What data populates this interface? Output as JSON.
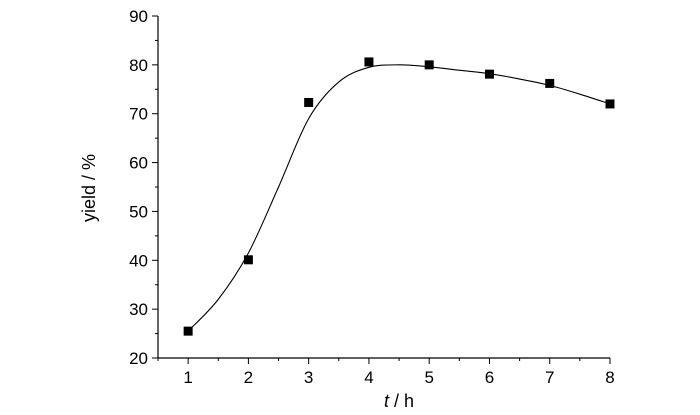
{
  "chart_data": {
    "type": "scatter",
    "title": "",
    "xlabel": {
      "var": "t",
      "unit": " / h"
    },
    "ylabel": "yield / %",
    "xlim": [
      0.5,
      8.0
    ],
    "ylim": [
      20,
      90
    ],
    "xticks": [
      1,
      2,
      3,
      4,
      5,
      6,
      7,
      8
    ],
    "yticks": [
      20,
      30,
      40,
      50,
      60,
      70,
      80,
      90
    ],
    "series": [
      {
        "marker": "square",
        "x": [
          1,
          2,
          3,
          4,
          5,
          6,
          7,
          8
        ],
        "y": [
          25.5,
          40.1,
          72.3,
          80.6,
          80.0,
          78.1,
          76.2,
          72.0
        ]
      }
    ],
    "fit_curve": {
      "x": [
        1.0,
        1.5,
        2.0,
        2.5,
        3.0,
        3.5,
        4.0,
        4.5,
        5.0,
        5.5,
        6.0,
        6.5,
        7.0,
        7.5,
        8.0
      ],
      "y": [
        25.5,
        32.0,
        41.5,
        55.0,
        69.0,
        76.5,
        79.5,
        80.0,
        79.6,
        78.9,
        78.2,
        77.1,
        75.8,
        74.0,
        72.0
      ]
    },
    "grid": false,
    "legend": "none"
  }
}
